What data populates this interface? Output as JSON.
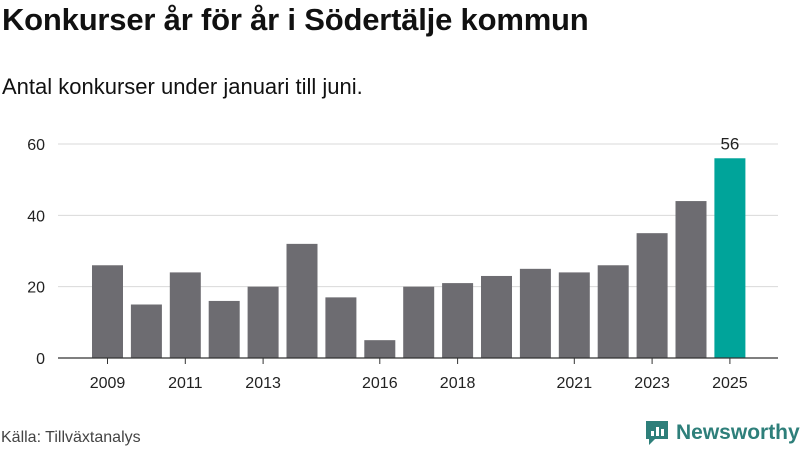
{
  "header": {
    "title": "Konkurser år för år i Södertälje kommun",
    "subtitle": "Antal konkurser under januari till juni."
  },
  "footer": {
    "source": "Källa: Tillväxtanalys",
    "brand": "Newsworthy"
  },
  "colors": {
    "bar": "#6d6c71",
    "highlight": "#00a49a",
    "grid": "#d9d9d9",
    "axis": "#333333",
    "brand": "#2e7f7a"
  },
  "chart_data": {
    "type": "bar",
    "categories": [
      "2009",
      "2010",
      "2011",
      "2012",
      "2013",
      "2014",
      "2015",
      "2016",
      "2017",
      "2018",
      "2019",
      "2020",
      "2021",
      "2022",
      "2023",
      "2024",
      "2025"
    ],
    "x_tick_labels": [
      "2009",
      "",
      "2011",
      "",
      "2013",
      "",
      "",
      "2016",
      "",
      "2018",
      "",
      "",
      "2021",
      "",
      "2023",
      "",
      "2025"
    ],
    "values": [
      26,
      15,
      24,
      16,
      20,
      32,
      17,
      5,
      20,
      21,
      23,
      25,
      24,
      26,
      35,
      44,
      56
    ],
    "highlight_index": 16,
    "data_labels": [
      {
        "index": 16,
        "text": "56"
      }
    ],
    "y_ticks": [
      0,
      20,
      40,
      60
    ],
    "ylim": [
      0,
      60
    ],
    "grid": true
  }
}
